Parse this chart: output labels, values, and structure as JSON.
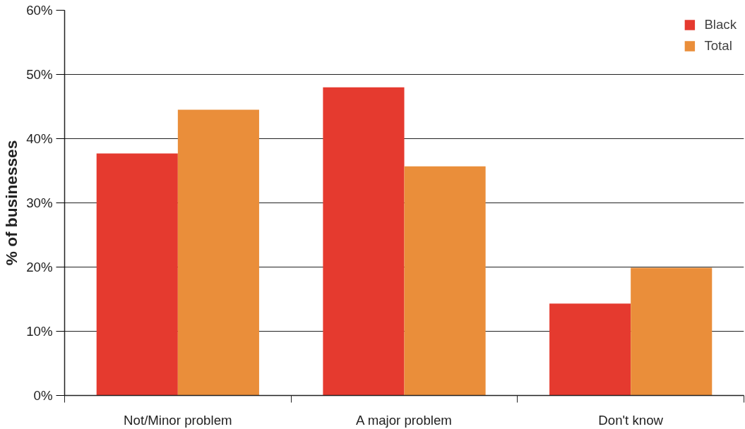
{
  "chart_data": {
    "type": "bar",
    "ylabel": "% of businesses",
    "categories": [
      "Not/Minor problem",
      "A major problem",
      "Don't know"
    ],
    "series": [
      {
        "name": "Black",
        "color": "#e53a2f",
        "values": [
          37.7,
          48.0,
          14.3
        ]
      },
      {
        "name": "Total",
        "color": "#ea8e3a",
        "values": [
          44.5,
          35.7,
          19.9
        ]
      }
    ],
    "ylim": [
      0,
      60
    ],
    "yticks": [
      {
        "value": 0,
        "label": "0%"
      },
      {
        "value": 10,
        "label": "10%"
      },
      {
        "value": 20,
        "label": "20%"
      },
      {
        "value": 30,
        "label": "30%"
      },
      {
        "value": 40,
        "label": "40%"
      },
      {
        "value": 50,
        "label": "50%"
      },
      {
        "value": 60,
        "label": "60%"
      }
    ],
    "grid": "y",
    "legend": "top right"
  }
}
